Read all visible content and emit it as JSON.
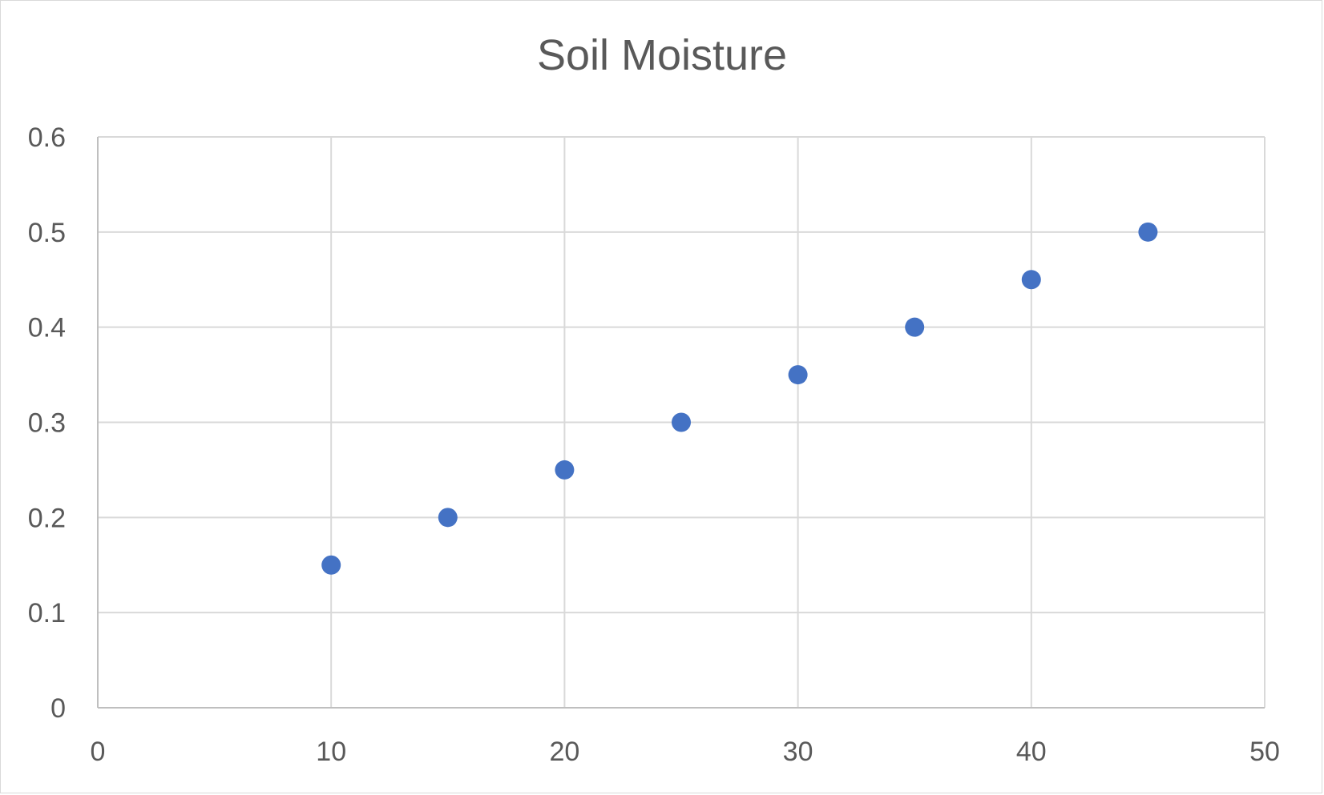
{
  "chart_data": {
    "type": "scatter",
    "title": "Soil Moisture",
    "xlabel": "",
    "ylabel": "",
    "xlim": [
      0,
      50
    ],
    "ylim": [
      0,
      0.6
    ],
    "x_ticks": [
      "0",
      "10",
      "20",
      "30",
      "40",
      "50"
    ],
    "y_ticks": [
      "0",
      "0.1",
      "0.2",
      "0.3",
      "0.4",
      "0.5",
      "0.6"
    ],
    "grid": true,
    "legend": "none",
    "marker_color": "#4472C4",
    "series": [
      {
        "x": [
          10,
          15,
          20,
          25,
          30,
          35,
          40,
          45
        ],
        "y": [
          0.15,
          0.2,
          0.25,
          0.3,
          0.35,
          0.4,
          0.45,
          0.5
        ]
      }
    ]
  }
}
